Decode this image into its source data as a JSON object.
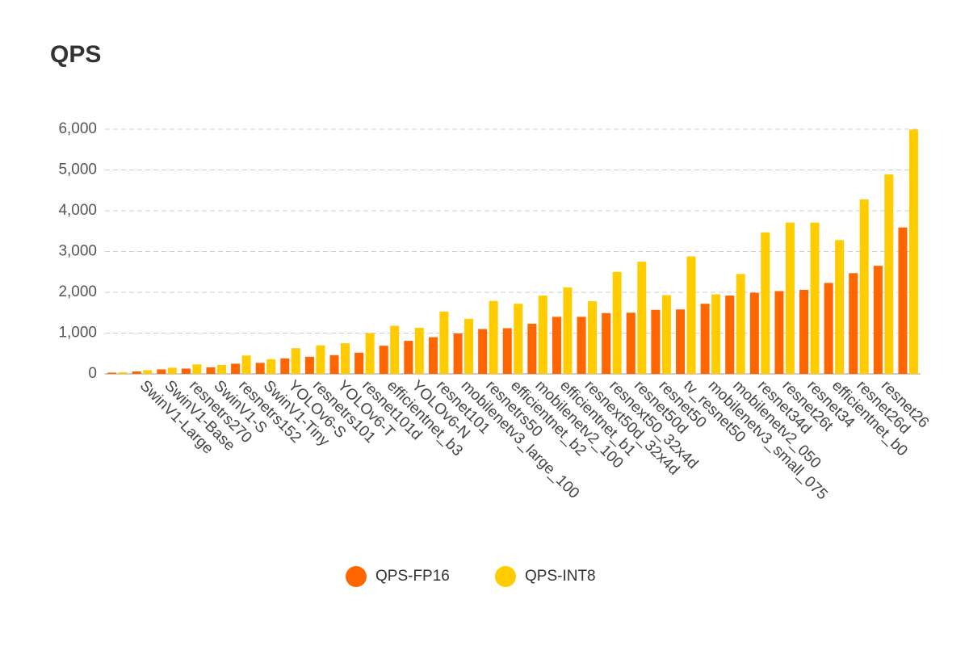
{
  "chart_data": {
    "type": "bar",
    "title": "QPS",
    "categories": [
      null,
      "SwinV1-Large",
      "SwinV1-Base",
      "resnetrs270",
      "SwinV1-S",
      "resnetrs152",
      "SwinV1-Tiny",
      "YOLOv6-S",
      "resnetrs101",
      "YOLOv6-T",
      "resnet101d",
      "efficientnet_b3",
      "YOLOv6-N",
      "resnet101",
      "mobilenetv3_large_100",
      "resnetrs50",
      "efficientnet_b2",
      "mobilenetv2_100",
      "efficientnet_b1",
      "resnext50d_32x4d",
      "resnext50_32x4d",
      "resnet50d",
      "resnet50",
      "tv_resnet50",
      "mobilenetv3_small_075",
      "mobilenetv2_050",
      "resnet34d",
      "resnet26t",
      "resnet34",
      "efficientnet_b0",
      "resnet26d",
      "resnet26",
      null
    ],
    "series": [
      {
        "name": "QPS-FP16",
        "color": "#ff6600",
        "values": [
          30,
          60,
          110,
          130,
          160,
          250,
          270,
          380,
          420,
          460,
          520,
          690,
          810,
          900,
          990,
          1100,
          1120,
          1230,
          1400,
          1400,
          1490,
          1500,
          1570,
          1580,
          1720,
          1920,
          1990,
          2030,
          2060,
          2230,
          2470,
          2650,
          3590
        ]
      },
      {
        "name": "QPS-INT8",
        "color": "#ffcc00",
        "values": [
          40,
          90,
          150,
          230,
          220,
          450,
          360,
          630,
          700,
          750,
          1000,
          1180,
          1130,
          1530,
          1350,
          1790,
          1720,
          1920,
          2120,
          1780,
          2500,
          2750,
          1930,
          2880,
          1950,
          2450,
          3470,
          3710,
          3710,
          3280,
          4280,
          4890,
          5990
        ]
      }
    ],
    "ylim": [
      0,
      6000
    ],
    "yticks": [
      0,
      {
        "value": 1000,
        "label": "1,000"
      },
      {
        "value": 2000,
        "label": "2,000"
      },
      {
        "value": 3000,
        "label": "3,000"
      },
      {
        "value": 4000,
        "label": "4,000"
      },
      {
        "value": 5000,
        "label": "5,000"
      },
      {
        "value": 6000,
        "label": "6,000"
      }
    ],
    "grid": true,
    "legend": "bottom"
  }
}
